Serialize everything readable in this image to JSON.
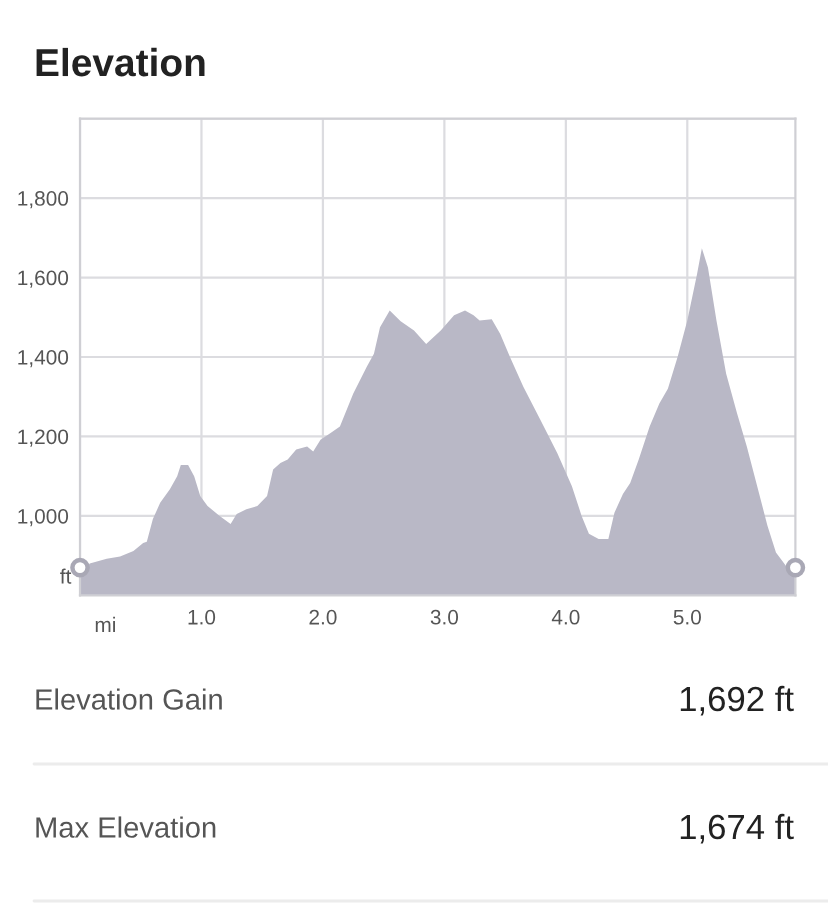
{
  "chart_data": {
    "type": "area",
    "title": "Elevation",
    "xlabel": "mi",
    "ylabel": "ft",
    "xlim": [
      0,
      5.89
    ],
    "ylim": [
      800,
      2000
    ],
    "xticks": [
      {
        "value": 0,
        "label": null
      },
      {
        "value": 1,
        "label": "1.0"
      },
      {
        "value": 2,
        "label": "2.0"
      },
      {
        "value": 3,
        "label": "3.0"
      },
      {
        "value": 4,
        "label": "4.0"
      },
      {
        "value": 5,
        "label": "5.0"
      }
    ],
    "yticks": [
      {
        "value": 1000,
        "label": "1,000"
      },
      {
        "value": 1200,
        "label": "1,200"
      },
      {
        "value": 1400,
        "label": "1,400"
      },
      {
        "value": 1600,
        "label": "1,600"
      },
      {
        "value": 1800,
        "label": "1,800"
      },
      {
        "value": 2000,
        "label": null
      }
    ],
    "grid": true,
    "series": [
      {
        "color": "#b9b8c6",
        "x": [
          0,
          0.08,
          0.22,
          0.33,
          0.44,
          0.52,
          0.55,
          0.6,
          0.66,
          0.74,
          0.8,
          0.83,
          0.89,
          0.94,
          0.99,
          1.05,
          1.15,
          1.24,
          1.29,
          1.37,
          1.46,
          1.54,
          1.59,
          1.65,
          1.71,
          1.78,
          1.87,
          1.92,
          1.98,
          2.06,
          2.14,
          2.25,
          2.36,
          2.42,
          2.47,
          2.55,
          2.64,
          2.75,
          2.85,
          2.97,
          3.08,
          3.17,
          3.24,
          3.29,
          3.39,
          3.46,
          3.54,
          3.65,
          3.79,
          3.93,
          4.05,
          4.13,
          4.19,
          4.27,
          4.35,
          4.4,
          4.47,
          4.53,
          4.6,
          4.69,
          4.77,
          4.84,
          4.92,
          5.0,
          5.08,
          5.12,
          5.17,
          5.24,
          5.32,
          5.41,
          5.49,
          5.59,
          5.66,
          5.73,
          5.83,
          5.89
        ],
        "values": [
          842,
          880,
          892,
          898,
          912,
          932,
          935,
          992,
          1033,
          1067,
          1100,
          1128,
          1128,
          1100,
          1050,
          1025,
          1000,
          980,
          1005,
          1017,
          1025,
          1050,
          1117,
          1133,
          1142,
          1167,
          1175,
          1162,
          1192,
          1208,
          1225,
          1308,
          1375,
          1408,
          1475,
          1517,
          1490,
          1467,
          1433,
          1467,
          1505,
          1517,
          1505,
          1492,
          1495,
          1458,
          1400,
          1325,
          1242,
          1158,
          1075,
          1000,
          955,
          942,
          942,
          1008,
          1055,
          1083,
          1142,
          1225,
          1283,
          1320,
          1400,
          1492,
          1608,
          1674,
          1625,
          1492,
          1358,
          1258,
          1175,
          1058,
          975,
          908,
          867,
          850
        ]
      },
      {
        "type": "scatter",
        "color": "#a9a8b5",
        "marker": "circle",
        "x": [
          0,
          5.89
        ],
        "values": [
          870,
          870
        ]
      }
    ],
    "annotations": [
      "Elevation Gain",
      "1,692 ft",
      "Max Elevation",
      "1,674 ft"
    ]
  }
}
